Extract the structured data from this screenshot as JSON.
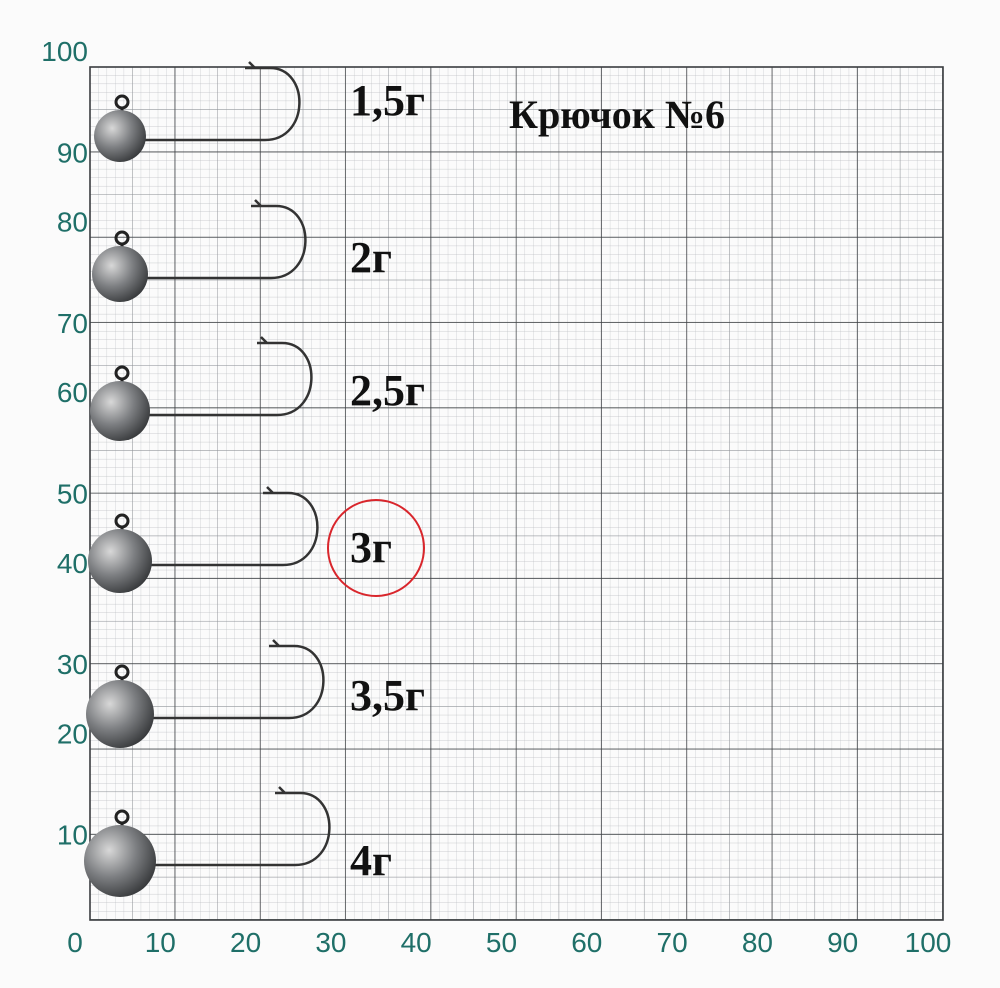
{
  "title": "Крючок №6",
  "axes": {
    "x_labels": [
      "0",
      "10",
      "20",
      "30",
      "40",
      "50",
      "60",
      "70",
      "80",
      "90",
      "100"
    ],
    "y_labels": [
      "10",
      "20",
      "30",
      "40",
      "50",
      "60",
      "70",
      "80",
      "90",
      "100"
    ]
  },
  "jigs": [
    {
      "label": "1,5г"
    },
    {
      "label": "2г"
    },
    {
      "label": "2,5г"
    },
    {
      "label": "3г"
    },
    {
      "label": "3,5г"
    },
    {
      "label": "4г"
    }
  ]
}
